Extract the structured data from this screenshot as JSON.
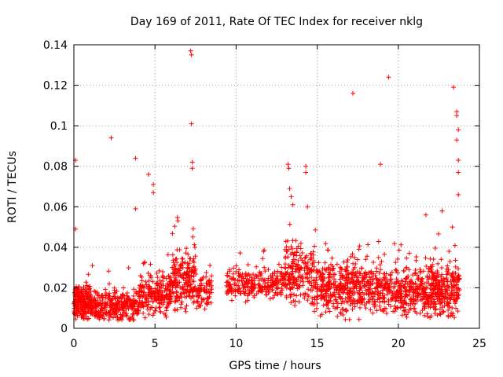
{
  "chart_data": {
    "type": "scatter",
    "title": "Day 169 of 2011, Rate Of TEC Index for receiver nklg",
    "xlabel": "GPS time / hours",
    "ylabel": "ROTI / TECUs",
    "xlim": [
      0,
      25
    ],
    "ylim": [
      0,
      0.14
    ],
    "xticks": [
      0,
      5,
      10,
      15,
      20,
      25
    ],
    "xtick_labels": [
      "0",
      "5",
      "10",
      "15",
      "20",
      "25"
    ],
    "yticks": [
      0,
      0.02,
      0.04,
      0.06,
      0.08,
      0.1,
      0.12,
      0.14
    ],
    "ytick_labels": [
      "0",
      "0.02",
      "0.04",
      "0.06",
      "0.08",
      "0.1",
      "0.12",
      "0.14"
    ],
    "grid": true,
    "marker": "plus",
    "color": "#ff0000",
    "notable_points": [
      {
        "x": 0.1,
        "y": 0.083
      },
      {
        "x": 0.1,
        "y": 0.049
      },
      {
        "x": 2.3,
        "y": 0.094
      },
      {
        "x": 3.8,
        "y": 0.084
      },
      {
        "x": 3.8,
        "y": 0.059
      },
      {
        "x": 4.6,
        "y": 0.076
      },
      {
        "x": 4.9,
        "y": 0.071
      },
      {
        "x": 4.9,
        "y": 0.067
      },
      {
        "x": 7.2,
        "y": 0.137
      },
      {
        "x": 7.25,
        "y": 0.135
      },
      {
        "x": 7.25,
        "y": 0.101
      },
      {
        "x": 7.3,
        "y": 0.082
      },
      {
        "x": 7.3,
        "y": 0.079
      },
      {
        "x": 13.2,
        "y": 0.081
      },
      {
        "x": 13.25,
        "y": 0.079
      },
      {
        "x": 13.3,
        "y": 0.069
      },
      {
        "x": 13.4,
        "y": 0.065
      },
      {
        "x": 13.5,
        "y": 0.061
      },
      {
        "x": 14.3,
        "y": 0.08
      },
      {
        "x": 14.3,
        "y": 0.077
      },
      {
        "x": 14.4,
        "y": 0.06
      },
      {
        "x": 17.2,
        "y": 0.116
      },
      {
        "x": 18.9,
        "y": 0.081
      },
      {
        "x": 19.4,
        "y": 0.124
      },
      {
        "x": 21.7,
        "y": 0.056
      },
      {
        "x": 22.7,
        "y": 0.058
      },
      {
        "x": 23.4,
        "y": 0.119
      },
      {
        "x": 23.6,
        "y": 0.107
      },
      {
        "x": 23.6,
        "y": 0.105
      },
      {
        "x": 23.7,
        "y": 0.098
      },
      {
        "x": 23.6,
        "y": 0.093
      },
      {
        "x": 23.7,
        "y": 0.083
      },
      {
        "x": 23.7,
        "y": 0.077
      },
      {
        "x": 23.7,
        "y": 0.066
      }
    ],
    "background_bands": [
      {
        "x_start": 0.0,
        "x_end": 1.0,
        "y_center": 0.013,
        "y_spread": 0.009,
        "count": 200
      },
      {
        "x_start": 1.0,
        "x_end": 4.0,
        "y_center": 0.011,
        "y_spread": 0.008,
        "count": 320
      },
      {
        "x_start": 4.0,
        "x_end": 6.0,
        "y_center": 0.016,
        "y_spread": 0.01,
        "count": 220
      },
      {
        "x_start": 6.0,
        "x_end": 7.5,
        "y_center": 0.024,
        "y_spread": 0.014,
        "count": 200
      },
      {
        "x_start": 7.5,
        "x_end": 8.5,
        "y_center": 0.018,
        "y_spread": 0.01,
        "count": 80
      },
      {
        "x_start": 9.4,
        "x_end": 13.0,
        "y_center": 0.022,
        "y_spread": 0.008,
        "count": 260
      },
      {
        "x_start": 13.0,
        "x_end": 14.8,
        "y_center": 0.026,
        "y_spread": 0.016,
        "count": 200
      },
      {
        "x_start": 14.8,
        "x_end": 19.0,
        "y_center": 0.02,
        "y_spread": 0.013,
        "count": 480
      },
      {
        "x_start": 19.0,
        "x_end": 22.0,
        "y_center": 0.018,
        "y_spread": 0.012,
        "count": 340
      },
      {
        "x_start": 22.0,
        "x_end": 23.8,
        "y_center": 0.019,
        "y_spread": 0.013,
        "count": 260
      }
    ]
  }
}
